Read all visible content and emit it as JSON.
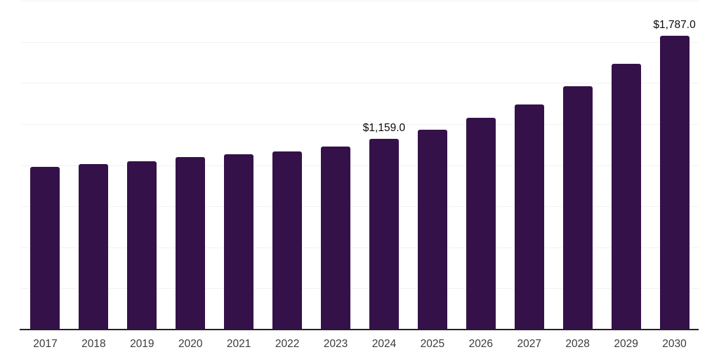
{
  "chart_data": {
    "type": "bar",
    "title": "",
    "xlabel": "",
    "ylabel": "",
    "categories": [
      "2017",
      "2018",
      "2019",
      "2020",
      "2021",
      "2022",
      "2023",
      "2024",
      "2025",
      "2026",
      "2027",
      "2028",
      "2029",
      "2030"
    ],
    "values": [
      990,
      1007,
      1024,
      1050,
      1067,
      1084,
      1114,
      1159.0,
      1216,
      1286,
      1370,
      1480,
      1616,
      1787.0
    ],
    "point_labels": [
      "",
      "",
      "",
      "",
      "",
      "",
      "",
      "$1,159.0",
      "",
      "",
      "",
      "",
      "",
      "$1,787.0"
    ],
    "ylim": [
      0,
      2000
    ],
    "gridline_interval": 250,
    "grid": "horizontal",
    "legend": "none",
    "colors": {
      "bar_fill": "#35114A",
      "axis_line": "#222222",
      "gridline": "#f2f2f4",
      "tick_label": "#3b3b3b",
      "data_label": "#0a0a0a",
      "background": "#ffffff"
    }
  }
}
